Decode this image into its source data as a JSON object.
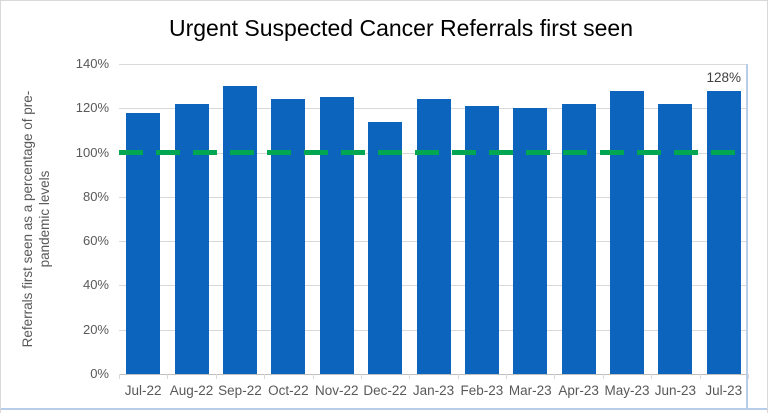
{
  "frame": {
    "border_color": "#d9d9d9",
    "spreadsheet_rule_color": "#b7cde9",
    "background": "#ffffff"
  },
  "chart_data": {
    "type": "bar",
    "title": "Urgent Suspected Cancer Referrals first seen",
    "xlabel": "",
    "ylabel": "Referrals first seen as a percentage of pre-pandemic levels",
    "ylabel_lines": [
      "Referrals first seen as a percentage of pre-",
      "pandemic levels"
    ],
    "categories": [
      "Jul-22",
      "Aug-22",
      "Sep-22",
      "Oct-22",
      "Nov-22",
      "Dec-22",
      "Jan-23",
      "Feb-23",
      "Mar-23",
      "Apr-23",
      "May-23",
      "Jun-23",
      "Jul-23"
    ],
    "values": [
      118,
      122,
      130,
      124,
      125,
      114,
      124,
      121,
      120,
      122,
      128,
      122,
      128
    ],
    "ylim": [
      0,
      140
    ],
    "ytick_step": 20,
    "ytick_labels": [
      "0%",
      "20%",
      "40%",
      "60%",
      "80%",
      "100%",
      "120%",
      "140%"
    ],
    "grid": "horizontal",
    "legend": "none",
    "bar_color": "#0d64bc",
    "gridline_color": "#d9d9d9",
    "axis_line_color": "#bfbfbf",
    "tick_label_color": "#595959",
    "title_color": "#000000",
    "reference_line": {
      "value": 100,
      "style": "dashed",
      "color": "#00a651"
    },
    "data_label": {
      "category": "Jul-23",
      "text": "128%",
      "color": "#404040"
    }
  }
}
